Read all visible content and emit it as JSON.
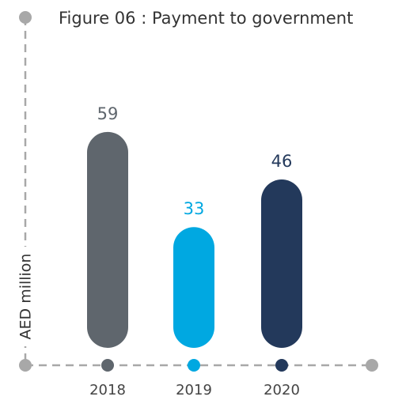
{
  "chart_data": {
    "type": "bar",
    "title": "Figure 06 : Payment to government",
    "y_label": "AED million",
    "categories": [
      "2018",
      "2019",
      "2020"
    ],
    "values": [
      59,
      33,
      46
    ],
    "colors": [
      "#5f666d",
      "#00a8e1",
      "#23395b"
    ]
  }
}
